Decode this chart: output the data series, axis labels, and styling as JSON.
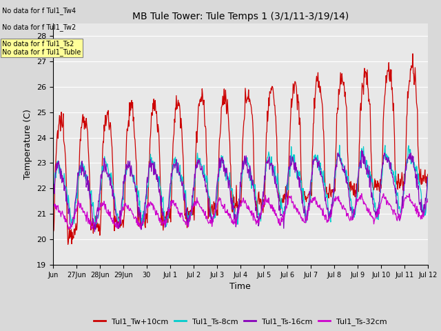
{
  "title": "MB Tule Tower: Tule Temps 1 (3/1/11-3/19/14)",
  "xlabel": "Time",
  "ylabel": "Temperature (C)",
  "ylim": [
    19.0,
    28.5
  ],
  "yticks": [
    19.0,
    20.0,
    21.0,
    22.0,
    23.0,
    24.0,
    25.0,
    26.0,
    27.0,
    28.0
  ],
  "background_color": "#d9d9d9",
  "plot_bg_color": "#e8e8e8",
  "legend_labels": [
    "Tul1_Tw+10cm",
    "Tul1_Ts-8cm",
    "Tul1_Ts-16cm",
    "Tul1_Ts-32cm"
  ],
  "legend_colors": [
    "#cc0000",
    "#00cccc",
    "#8800bb",
    "#cc00cc"
  ],
  "no_data_labels": [
    "No data for f Tul1_Tw4",
    "No data for f Tul1_Tw2",
    "No data for f Tul1_Ts2",
    "No data for f Tul1_Tuble"
  ],
  "no_data_box_color": "#ffff99",
  "xtick_labels": [
    "Jun",
    "27Jun",
    "28Jun",
    "29Jun",
    "30",
    "Jul 1",
    "Jul 2",
    "Jul 3",
    "Jul 4",
    "Jul 5",
    "Jul 6",
    "Jul 7",
    "Jul 8",
    "Jul 9",
    "Jul 10",
    "Jul 11",
    "Jul 12"
  ],
  "num_points": 800
}
